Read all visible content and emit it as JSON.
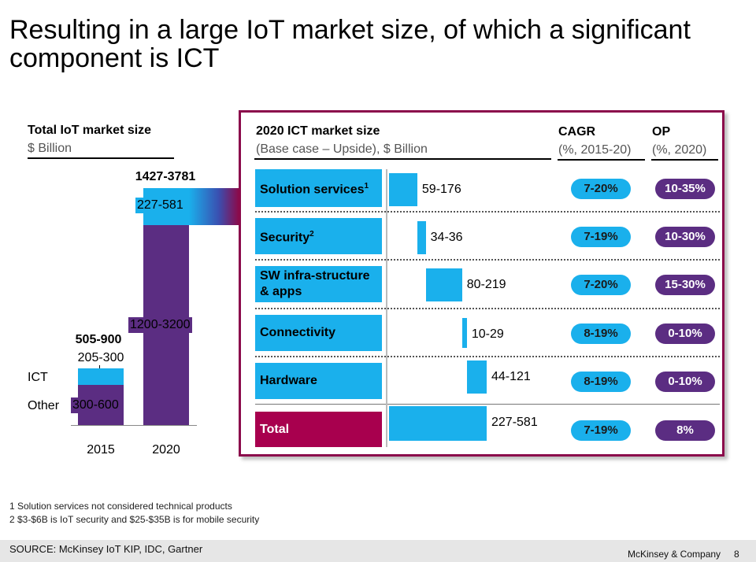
{
  "slide": {
    "title": "Resulting in a large IoT market size, of which a significant component is ICT",
    "page_number": "8",
    "company": "McKinsey & Company",
    "source": "SOURCE: McKinsey IoT KIP, IDC, Gartner",
    "footnotes": [
      "1 Solution services not considered technical products",
      "2 $3-$6B is IoT security and $25-$35B is for mobile security"
    ]
  },
  "colors": {
    "ict": "#1ab0ec",
    "other": "#5b2d82",
    "total": "#a8004e",
    "frame": "#8b0a4b"
  },
  "chart_data": [
    {
      "type": "bar",
      "title": "Total IoT market size",
      "ylabel": "$ Billion",
      "categories": [
        "2015",
        "2020"
      ],
      "segment_labels": [
        "ICT",
        "Other"
      ],
      "totals": [
        "505-900",
        "1427-3781"
      ],
      "series": [
        {
          "name": "Other",
          "labels": [
            "300-600",
            "1200-3200"
          ],
          "values": [
            450,
            2200
          ]
        },
        {
          "name": "ICT",
          "labels": [
            "205-300",
            "227-581"
          ],
          "values": [
            252,
            404
          ]
        }
      ]
    },
    {
      "type": "bar",
      "subtype": "waterfall",
      "title": "2020 ICT market size",
      "subtitle": "(Base case – Upside), $ Billion",
      "columns": {
        "cagr": "CAGR",
        "cagr_sub": "(%, 2015-20)",
        "op": "OP",
        "op_sub": "(%, 2020)"
      },
      "rows": [
        {
          "label": "Solution services",
          "sup": "1",
          "value_label": "59-176",
          "value": 117,
          "cagr": "7-20%",
          "op": "10-35%"
        },
        {
          "label": "Security",
          "sup": "2",
          "value_label": "34-36",
          "value": 35,
          "cagr": "7-19%",
          "op": "10-30%"
        },
        {
          "label": "SW infra-structure & apps",
          "sup": "",
          "value_label": "80-219",
          "value": 150,
          "cagr": "7-20%",
          "op": "15-30%"
        },
        {
          "label": "Connectivity",
          "sup": "",
          "value_label": "10-29",
          "value": 20,
          "cagr": "8-19%",
          "op": "0-10%"
        },
        {
          "label": "Hardware",
          "sup": "",
          "value_label": "44-121",
          "value": 82,
          "cagr": "8-19%",
          "op": "0-10%"
        }
      ],
      "total": {
        "label": "Total",
        "value_label": "227-581",
        "value": 404,
        "cagr": "7-19%",
        "op": "8%"
      }
    }
  ]
}
